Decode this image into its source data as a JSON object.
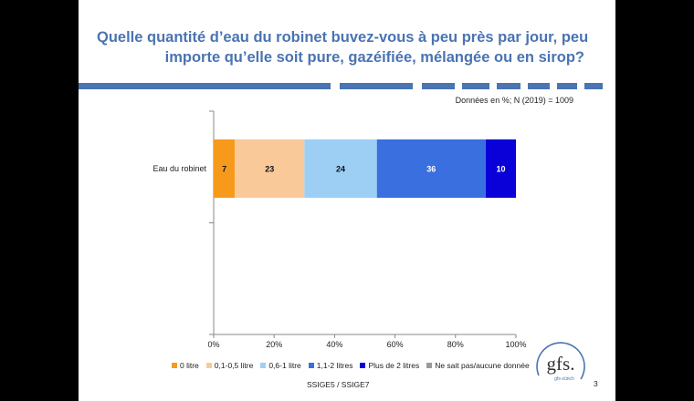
{
  "slide": {
    "title_lines": [
      "Quelle quantité d’eau du robinet buvez-vous à peu près par jour, peu",
      "importe qu’elle soit pure, gazéifiée, mélangée ou en sirop?"
    ],
    "note": "Données en %; N (2019) = 1009",
    "source": "SSIGE5 / SSIGE7",
    "page_number": "3",
    "logo": {
      "text": "gfs.",
      "subtext": "gfs-zürich"
    },
    "accent_color": "#4a74b2"
  },
  "chart_data": {
    "type": "bar",
    "orientation": "horizontal",
    "stacked": true,
    "categories": [
      "Eau du robinet"
    ],
    "series": [
      {
        "name": "0 litre",
        "values": [
          7
        ],
        "color": "#f79a1c"
      },
      {
        "name": "0,1-0,5 litre",
        "values": [
          23
        ],
        "color": "#f9c99a"
      },
      {
        "name": "0,6-1 litre",
        "values": [
          24
        ],
        "color": "#9dcff5"
      },
      {
        "name": "1,1-2 litres",
        "values": [
          36
        ],
        "color": "#3a6fe0"
      },
      {
        "name": "Plus de 2 litres",
        "values": [
          10
        ],
        "color": "#0a00d8"
      },
      {
        "name": "Ne sait pas/aucune donnée",
        "values": [
          0
        ],
        "color": "#9a9a9a"
      }
    ],
    "xlim": [
      0,
      100
    ],
    "xticks": [
      "0%",
      "20%",
      "40%",
      "60%",
      "80%",
      "100%"
    ],
    "grid": false,
    "legend": "bottom"
  }
}
